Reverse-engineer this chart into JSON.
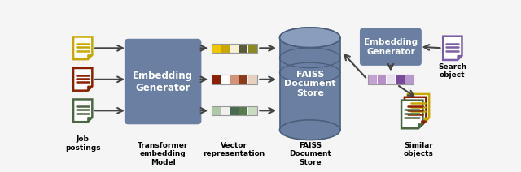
{
  "bg_color": "#f5f5f5",
  "embedding_box_color": "#6b7fa3",
  "faiss_cylinder_color": "#6b7fa3",
  "faiss_cylinder_top_color": "#8a9dbc",
  "doc_yellow_color": "#c8a800",
  "doc_red_color": "#8b2000",
  "doc_green_color": "#4a6741",
  "doc_purple_color": "#7b5ea7",
  "arrow_color": "#333333",
  "label_color": "#000000",
  "vec_row1": [
    "#f0c800",
    "#c8a800",
    "#f5f0d8",
    "#5a5a3a",
    "#8a8a20"
  ],
  "vec_row2": [
    "#8b2000",
    "#ffffff",
    "#d4927a",
    "#8b3a1a",
    "#e8cfc0"
  ],
  "vec_row3": [
    "#b0c8a8",
    "#f0f0f0",
    "#4a6a50",
    "#5a7a50",
    "#c8dcc0"
  ],
  "vec_search": [
    "#c8a0d8",
    "#b88ec8",
    "#e8e0f0",
    "#7a4a9a",
    "#b898cc"
  ],
  "labels": {
    "job_postings": "Job\npostings",
    "transformer": "Transformer\nembedding\nModel",
    "vector_rep": "Vector\nrepresentation",
    "faiss_bottom": "FAISS\nDocument\nStore",
    "search_obj": "Search\nobject",
    "similar_obj": "Similar\nobjects"
  }
}
